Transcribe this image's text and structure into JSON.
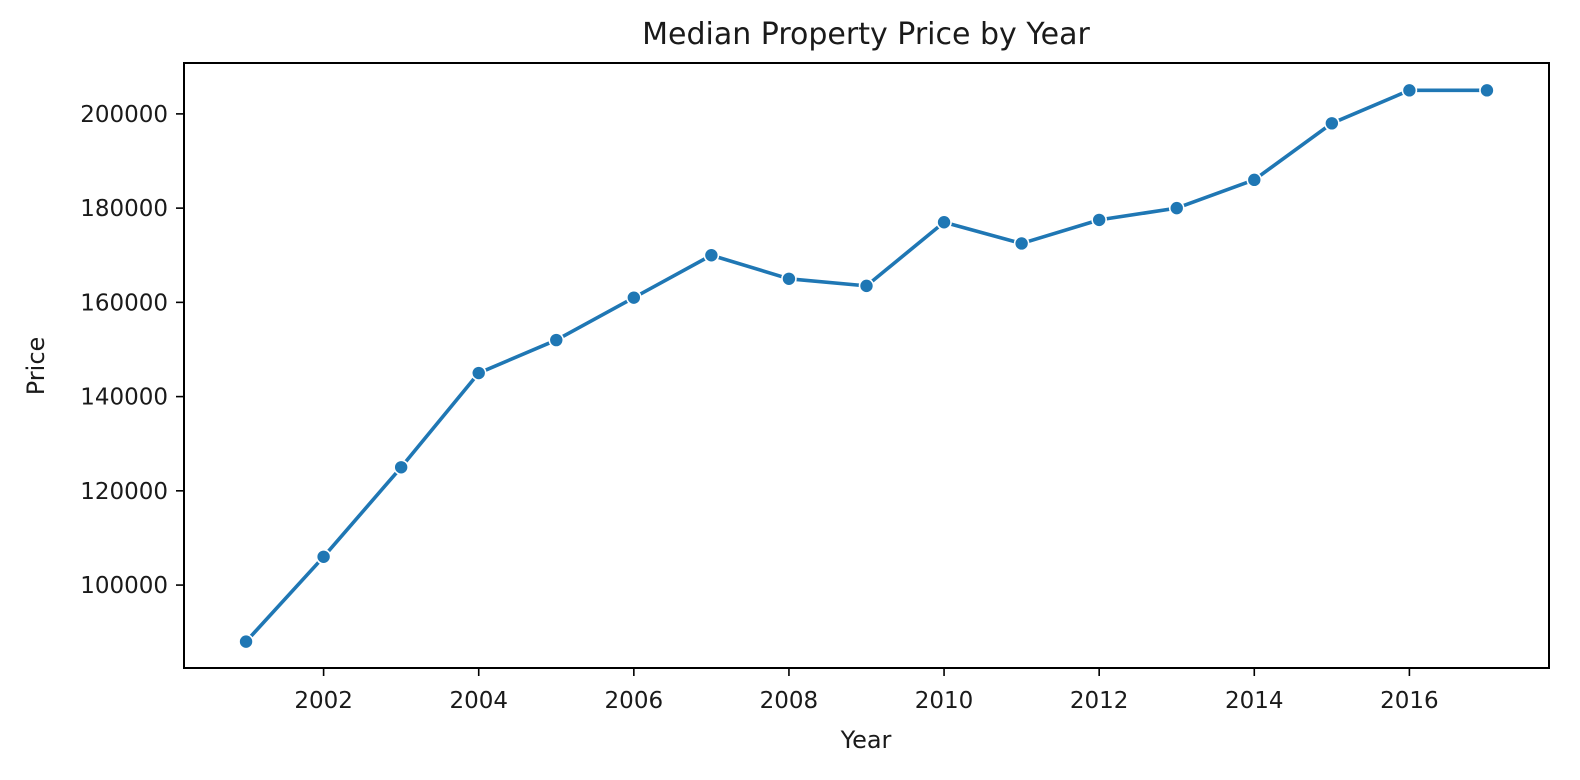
{
  "chart_data": {
    "type": "line",
    "title": "Median Property Price by Year",
    "xlabel": "Year",
    "ylabel": "Price",
    "xlim": [
      2000.2,
      2017.8
    ],
    "ylim": [
      82400,
      210800
    ],
    "xticks": [
      2002,
      2004,
      2006,
      2008,
      2010,
      2012,
      2014,
      2016
    ],
    "yticks": [
      100000,
      120000,
      140000,
      160000,
      180000,
      200000
    ],
    "grid": false,
    "legend": "none",
    "colors": {
      "series": "#1f77b4"
    },
    "series": [
      {
        "x": [
          2001,
          2002,
          2003,
          2004,
          2005,
          2006,
          2007,
          2008,
          2009,
          2010,
          2011,
          2012,
          2013,
          2014,
          2015,
          2016,
          2017
        ],
        "y": [
          88000,
          106000,
          125000,
          145000,
          152000,
          161000,
          170000,
          165000,
          163500,
          177000,
          172500,
          177500,
          180000,
          186000,
          198000,
          205000,
          205000
        ]
      }
    ]
  }
}
